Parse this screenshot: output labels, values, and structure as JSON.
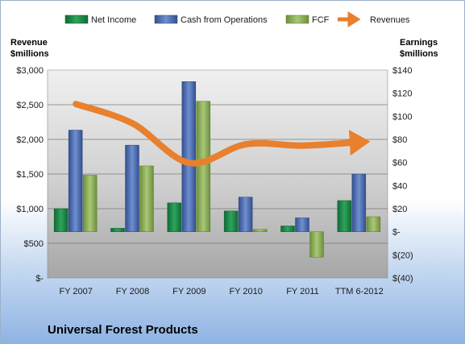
{
  "chart_data": {
    "type": "bar",
    "title": "Universal Forest Products",
    "categories": [
      "FY 2007",
      "FY 2008",
      "FY 2009",
      "FY 2010",
      "FY 2011",
      "TTM 6-2012"
    ],
    "left_axis": {
      "label_line1": "Revenue",
      "label_line2": "$millions",
      "range": [
        0,
        3000
      ],
      "ticks": [
        "$-",
        "$500",
        "$1,000",
        "$1,500",
        "$2,000",
        "$2,500",
        "$3,000"
      ]
    },
    "right_axis": {
      "label_line1": "Earnings",
      "label_line2": "$millions",
      "range": [
        -40,
        140
      ],
      "ticks": [
        "$(40)",
        "$(20)",
        "$-",
        "$20",
        "$40",
        "$60",
        "$80",
        "$100",
        "$120",
        "$140"
      ]
    },
    "series": [
      {
        "name": "Net Income",
        "type": "bar",
        "axis": "right",
        "color": "#1e8a4a",
        "values": [
          20,
          3,
          25,
          18,
          5,
          27
        ]
      },
      {
        "name": "Cash from Operations",
        "type": "bar",
        "axis": "right",
        "color": "#4f70b8",
        "values": [
          88,
          75,
          130,
          30,
          12,
          50
        ]
      },
      {
        "name": "FCF",
        "type": "bar",
        "axis": "right",
        "color": "#8cb05a",
        "values": [
          49,
          57,
          113,
          2,
          -22,
          13
        ]
      },
      {
        "name": "Revenues",
        "type": "line",
        "axis": "left",
        "color": "#e8802e",
        "values": [
          2510,
          2230,
          1660,
          1930,
          1910,
          1960
        ]
      }
    ],
    "legend_position": "top",
    "grid": true
  }
}
